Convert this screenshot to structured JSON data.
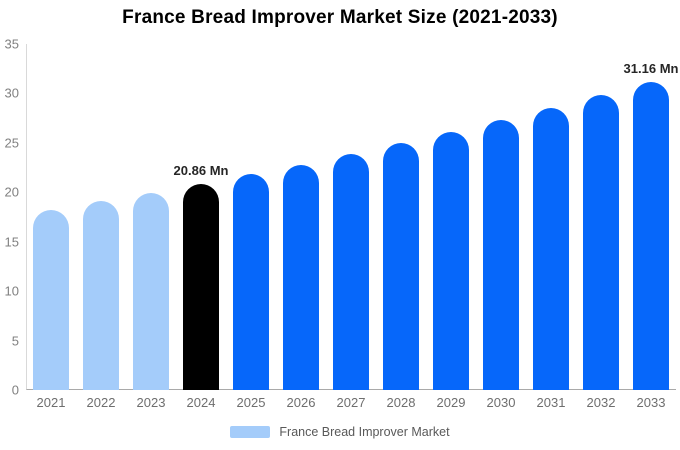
{
  "chart_data": {
    "type": "bar",
    "title": "France Bread Improver Market Size (2021-2033)",
    "xlabel": "",
    "ylabel": "",
    "unit": "Mn",
    "categories": [
      "2021",
      "2022",
      "2023",
      "2024",
      "2025",
      "2026",
      "2027",
      "2028",
      "2029",
      "2030",
      "2031",
      "2032",
      "2033"
    ],
    "values": [
      18.25,
      19.08,
      19.95,
      20.86,
      21.81,
      22.81,
      23.85,
      24.94,
      26.08,
      27.27,
      28.51,
      29.81,
      31.16
    ],
    "bar_colors": [
      "#A4CCFA",
      "#A4CCFA",
      "#A4CCFA",
      "#000000",
      "#0667FA",
      "#0667FA",
      "#0667FA",
      "#0667FA",
      "#0667FA",
      "#0667FA",
      "#0667FA",
      "#0667FA",
      "#0667FA"
    ],
    "annotations": [
      {
        "index": 3,
        "text": "20.86 Mn"
      },
      {
        "index": 12,
        "text": "31.16 Mn"
      }
    ],
    "ylim": [
      0,
      35
    ],
    "yticks": [
      0,
      5,
      10,
      15,
      20,
      25,
      30,
      35
    ],
    "grid": false,
    "legend_position": "bottom"
  },
  "legend": {
    "label": "France Bread Improver Market",
    "swatch_color": "#A4CCFA"
  },
  "colors": {
    "title_text": "#000000",
    "ytick_text": "#808080",
    "xtick_text": "#6e6e6e",
    "annotation_text": "#262626",
    "axis_line": "#d9d9d9",
    "baseline": "#a9a9a9",
    "background": "#ffffff",
    "historical_bar": "#A4CCFA",
    "base_year_bar": "#000000",
    "forecast_bar": "#0667FA"
  }
}
